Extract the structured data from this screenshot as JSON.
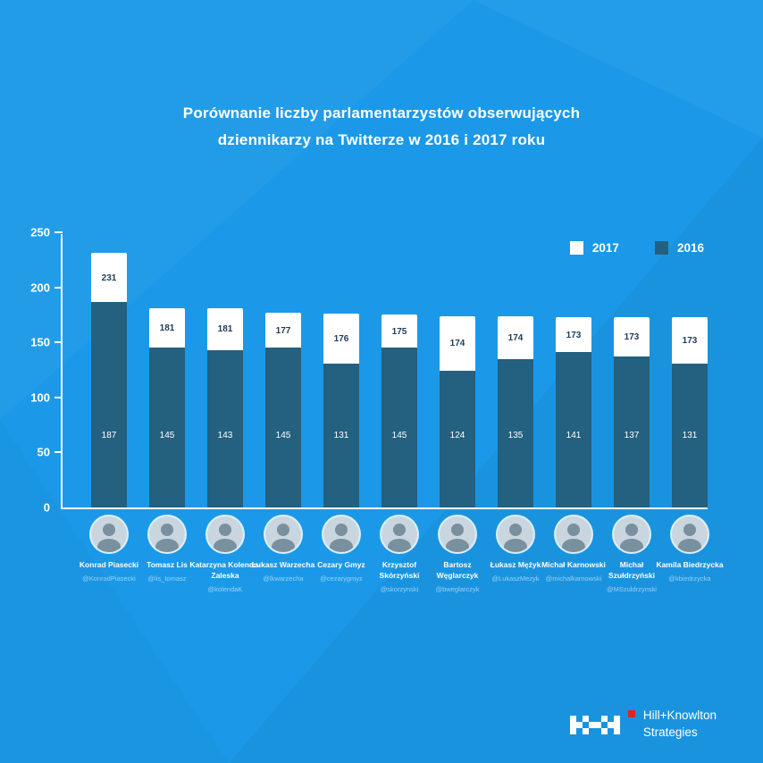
{
  "title": {
    "line1": "Porównanie liczby parlamentarzystów obserwujących",
    "line2": "dziennikarzy na Twitterze w 2016 i 2017 roku"
  },
  "legend": {
    "items": [
      {
        "label": "2017",
        "color": "#ffffff"
      },
      {
        "label": "2016",
        "color": "#24607f"
      }
    ],
    "position": "top-right"
  },
  "chart_data": {
    "type": "bar",
    "style": "overlay",
    "title": "Porównanie liczby parlamentarzystów obserwujących dziennikarzy na Twitterze w 2016 i 2017 roku",
    "categories": [
      "Konrad Piasecki",
      "Tomasz Lis",
      "Katarzyna Kolenda-Zaleska",
      "Łukasz Warzecha",
      "Cezary Gmyz",
      "Krzysztof Skórzyński",
      "Bartosz Węglarczyk",
      "Łukasz Mężyk",
      "Michał Karnowski",
      "Michał Szułdrzyński",
      "Kamila Biedrzycka"
    ],
    "handles": [
      "@KonradPiasecki",
      "@lis_tomasz",
      "@kolendaK",
      "@lkwarzecha",
      "@cezarygmyz",
      "@skorzynski",
      "@bweglarczyk",
      "@LukaszMezyk",
      "@michalkarnowski",
      "@MSzuldrzynski",
      "@kbiedrzycka"
    ],
    "series": [
      {
        "name": "2017",
        "values": [
          231,
          181,
          181,
          177,
          176,
          175,
          174,
          174,
          173,
          173,
          173
        ],
        "color": "#ffffff"
      },
      {
        "name": "2016",
        "values": [
          187,
          145,
          143,
          145,
          131,
          145,
          124,
          135,
          141,
          137,
          131
        ],
        "color": "#24607f"
      }
    ],
    "xlabel": "",
    "ylabel": "",
    "ylim": [
      0,
      250
    ],
    "yticks": [
      0,
      50,
      100,
      150,
      200,
      250
    ],
    "grid": false,
    "legend_position": "top-right"
  },
  "logo": {
    "line1": "Hill+Knowlton",
    "line2": "Strategies",
    "accent_color": "#e2231a"
  },
  "colors": {
    "background": "#1b99e8",
    "bar_2016": "#24607f",
    "bar_2017": "#ffffff",
    "label_2017_text": "#1d3c5a",
    "axis": "#ffffff"
  }
}
